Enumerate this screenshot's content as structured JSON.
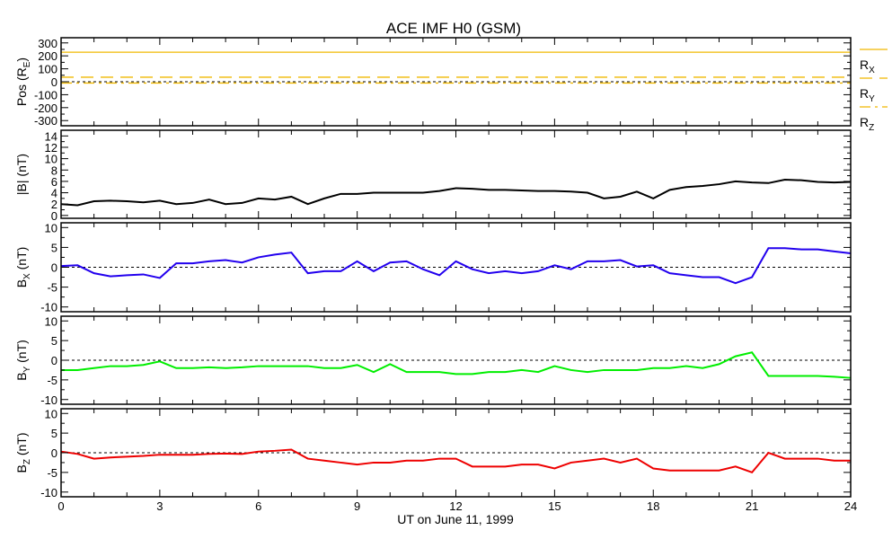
{
  "chart_data": {
    "type": "line",
    "title": "ACE IMF H0 (GSM)",
    "xlabel": "UT on June 11, 1999",
    "xlim": [
      0,
      24
    ],
    "xticks": [
      0,
      3,
      6,
      9,
      12,
      15,
      18,
      21,
      24
    ],
    "x": [
      0,
      0.5,
      1,
      1.5,
      2,
      2.5,
      3,
      3.5,
      4,
      4.5,
      5,
      5.5,
      6,
      6.5,
      7,
      7.5,
      8,
      8.5,
      9,
      9.5,
      10,
      10.5,
      11,
      11.5,
      12,
      12.5,
      13,
      13.5,
      14,
      14.5,
      15,
      15.5,
      16,
      16.5,
      17,
      17.5,
      18,
      18.5,
      19,
      19.5,
      20,
      20.5,
      21,
      21.5,
      22,
      22.5,
      23,
      23.5,
      24
    ],
    "panels": [
      {
        "ylabel": "Pos (R",
        "ylabel_sub": "E",
        "ylabel_end": ")",
        "ylim": [
          -340,
          340
        ],
        "yticks": [
          300,
          200,
          100,
          0,
          -100,
          -200,
          -300
        ],
        "zero_line": true,
        "legend": {
          "placement": "right",
          "entries": [
            {
              "label": "R",
              "sub": "X",
              "style": "solid"
            },
            {
              "label": "R",
              "sub": "Y",
              "style": "dashed"
            },
            {
              "label": "R",
              "sub": "Z",
              "style": "dashdot"
            }
          ]
        },
        "series": [
          {
            "name": "RX",
            "color": "#f0b800",
            "style": "solid",
            "constant": 228
          },
          {
            "name": "RY",
            "color": "#f0b800",
            "style": "dashed",
            "constant": 35
          },
          {
            "name": "RZ",
            "color": "#f0b800",
            "style": "dashdot",
            "constant": -10
          }
        ]
      },
      {
        "ylabel": "|B| (nT)",
        "ylabel_sub": "",
        "ylabel_end": "",
        "ylim": [
          -0.5,
          15
        ],
        "yticks": [
          14,
          12,
          10,
          8,
          6,
          4,
          2,
          0
        ],
        "zero_line": false,
        "series": [
          {
            "name": "|B|",
            "color": "#000000",
            "values": [
              2.0,
              1.8,
              2.5,
              2.6,
              2.5,
              2.3,
              2.6,
              2.0,
              2.2,
              2.8,
              2.0,
              2.2,
              3.0,
              2.8,
              3.3,
              2.0,
              3.0,
              3.8,
              3.8,
              4.0,
              4.0,
              4.0,
              4.0,
              4.3,
              4.8,
              4.7,
              4.5,
              4.5,
              4.4,
              4.3,
              4.3,
              4.2,
              4.0,
              3.0,
              3.3,
              4.2,
              3.0,
              4.5,
              5.0,
              5.2,
              5.5,
              6.0,
              5.8,
              5.7,
              6.3,
              6.2,
              5.9,
              5.8,
              5.9
            ]
          }
        ]
      },
      {
        "ylabel": "B",
        "ylabel_sub": "X",
        "ylabel_end": " (nT)",
        "ylim": [
          -11.2,
          11.2
        ],
        "yticks": [
          10,
          5,
          0,
          -5,
          -10
        ],
        "zero_line": true,
        "series": [
          {
            "name": "BX",
            "color": "#2200ee",
            "values": [
              0.3,
              0.5,
              -1.5,
              -2.3,
              -2,
              -1.8,
              -2.7,
              1,
              1,
              1.5,
              1.8,
              1.2,
              2.5,
              3.2,
              3.7,
              -1.5,
              -1,
              -1,
              1.5,
              -1,
              1.2,
              1.5,
              -0.5,
              -2,
              1.5,
              -0.5,
              -1.5,
              -1,
              -1.5,
              -1,
              0.5,
              -0.5,
              1.5,
              1.5,
              1.8,
              0.2,
              0.5,
              -1.5,
              -2,
              -2.5,
              -2.5,
              -4,
              -2.5,
              4.8,
              4.8,
              4.5,
              4.5,
              4,
              3.5
            ]
          }
        ]
      },
      {
        "ylabel": "B",
        "ylabel_sub": "Y",
        "ylabel_end": " (nT)",
        "ylim": [
          -11.2,
          11.2
        ],
        "yticks": [
          10,
          5,
          0,
          -5,
          -10
        ],
        "zero_line": true,
        "series": [
          {
            "name": "BY",
            "color": "#00ee00",
            "values": [
              -2.5,
              -2.5,
              -2,
              -1.5,
              -1.5,
              -1.2,
              -0.3,
              -2,
              -2,
              -1.8,
              -2,
              -1.8,
              -1.5,
              -1.5,
              -1.5,
              -1.5,
              -2,
              -2,
              -1.2,
              -3,
              -1,
              -3,
              -3,
              -3,
              -3.5,
              -3.5,
              -3,
              -3,
              -2.5,
              -3,
              -1.5,
              -2.5,
              -3,
              -2.5,
              -2.5,
              -2.5,
              -2,
              -2,
              -1.5,
              -2,
              -1,
              1,
              2,
              -4,
              -4,
              -4,
              -4,
              -4.2,
              -4.5
            ]
          }
        ]
      },
      {
        "ylabel": "B",
        "ylabel_sub": "Z",
        "ylabel_end": " (nT)",
        "ylim": [
          -11.2,
          11.2
        ],
        "yticks": [
          10,
          5,
          0,
          -5,
          -10
        ],
        "zero_line": true,
        "series": [
          {
            "name": "BZ",
            "color": "#ee0000",
            "values": [
              0.3,
              -0.3,
              -1.5,
              -1.2,
              -1,
              -0.8,
              -0.5,
              -0.5,
              -0.5,
              -0.3,
              -0.2,
              -0.3,
              0.3,
              0.5,
              0.8,
              -1.5,
              -2,
              -2.5,
              -3,
              -2.5,
              -2.5,
              -2,
              -2,
              -1.5,
              -1.5,
              -3.5,
              -3.5,
              -3.5,
              -3,
              -3,
              -4,
              -2.5,
              -2,
              -1.5,
              -2.5,
              -1.5,
              -4,
              -4.5,
              -4.5,
              -4.5,
              -4.5,
              -3.5,
              -5,
              0,
              -1.5,
              -1.5,
              -1.5,
              -2,
              -2
            ]
          }
        ]
      }
    ]
  }
}
